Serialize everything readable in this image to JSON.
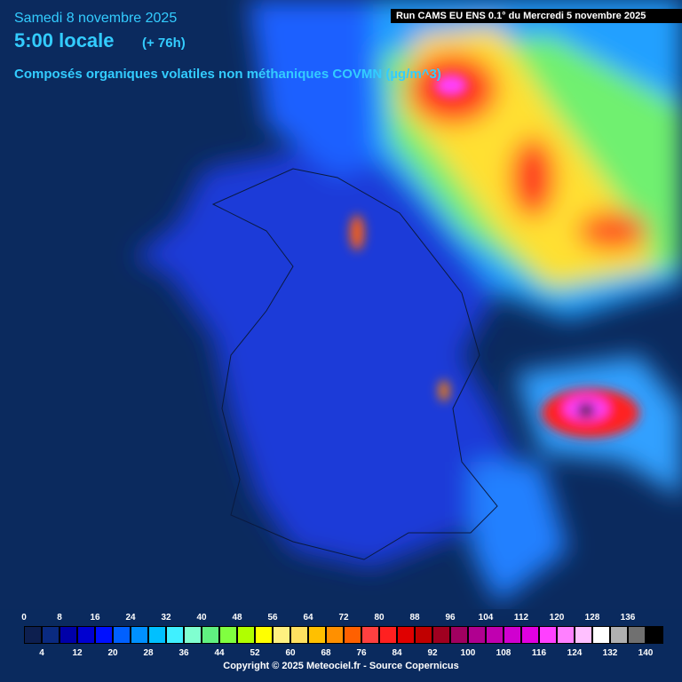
{
  "header": {
    "date": "Samedi 8 novembre 2025",
    "time": "5:00 locale",
    "lead": "(+ 76h)",
    "parameter": "Composés organiques volatiles non méthaniques COVMN (µg/m^3)",
    "run": "Run CAMS EU ENS 0.1° du Mercredi 5 novembre 2025"
  },
  "legend": {
    "items": [
      {
        "value": 0,
        "color": "#0d1f4f"
      },
      {
        "value": 4,
        "color": "#0a2a80"
      },
      {
        "value": 8,
        "color": "#0000a8"
      },
      {
        "value": 12,
        "color": "#0000d0"
      },
      {
        "value": 16,
        "color": "#0010ff"
      },
      {
        "value": 20,
        "color": "#0060ff"
      },
      {
        "value": 24,
        "color": "#0090ff"
      },
      {
        "value": 28,
        "color": "#00c0ff"
      },
      {
        "value": 32,
        "color": "#40f0ff"
      },
      {
        "value": 36,
        "color": "#80ffd0"
      },
      {
        "value": 40,
        "color": "#60f080"
      },
      {
        "value": 44,
        "color": "#80ff40"
      },
      {
        "value": 48,
        "color": "#b0ff00"
      },
      {
        "value": 52,
        "color": "#ffff00"
      },
      {
        "value": 56,
        "color": "#fff080"
      },
      {
        "value": 60,
        "color": "#ffe060"
      },
      {
        "value": 64,
        "color": "#ffc000"
      },
      {
        "value": 68,
        "color": "#ff9000"
      },
      {
        "value": 72,
        "color": "#ff6000"
      },
      {
        "value": 76,
        "color": "#ff4040"
      },
      {
        "value": 80,
        "color": "#ff2020"
      },
      {
        "value": 84,
        "color": "#e00000"
      },
      {
        "value": 88,
        "color": "#c00000"
      },
      {
        "value": 92,
        "color": "#a00020"
      },
      {
        "value": 96,
        "color": "#a00060"
      },
      {
        "value": 100,
        "color": "#b00090"
      },
      {
        "value": 104,
        "color": "#c000b0"
      },
      {
        "value": 108,
        "color": "#d000d0"
      },
      {
        "value": 112,
        "color": "#e000e0"
      },
      {
        "value": 116,
        "color": "#ff40ff"
      },
      {
        "value": 120,
        "color": "#ff80ff"
      },
      {
        "value": 124,
        "color": "#ffc0ff"
      },
      {
        "value": 128,
        "color": "#ffffff"
      },
      {
        "value": 132,
        "color": "#b0b0b0"
      },
      {
        "value": 136,
        "color": "#707070"
      },
      {
        "value": 140,
        "color": "#000000"
      }
    ]
  },
  "footer": {
    "copyright": "Copyright © 2025 Meteociel.fr - Source Copernicus"
  }
}
